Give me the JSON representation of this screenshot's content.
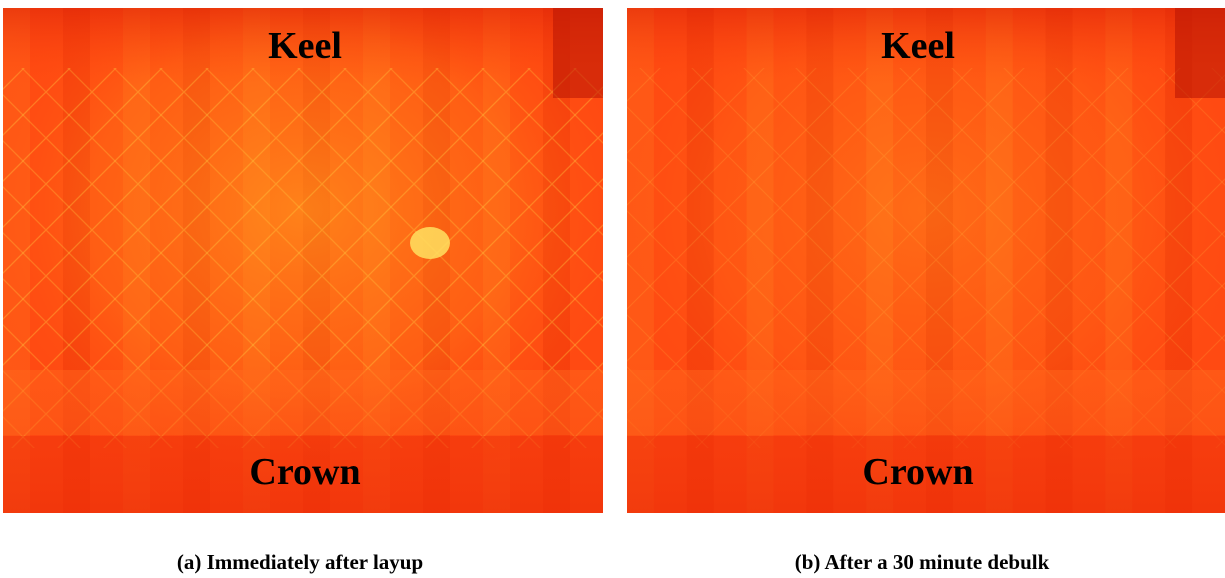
{
  "panels": [
    {
      "top_label": "Keel",
      "bottom_label": "Crown",
      "caption": "(a) Immediately after layup"
    },
    {
      "top_label": "Keel",
      "bottom_label": "Crown",
      "caption": "(b) After a 30 minute debulk"
    }
  ]
}
